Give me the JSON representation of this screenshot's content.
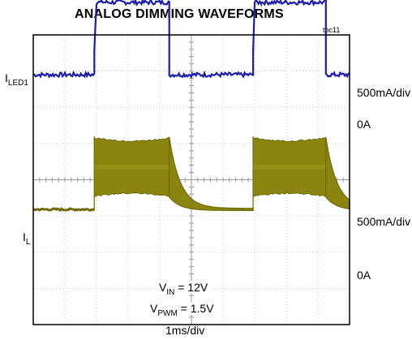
{
  "chart_data": {
    "type": "line",
    "title": "ANALOG DIMMING WAVEFORMS",
    "figure_tag": "toc11",
    "xlabel": "1ms/div",
    "x_divisions": 10,
    "y_divisions": 8,
    "grid": true,
    "traces": [
      {
        "label_main": "I",
        "label_sub": "LED1",
        "scale": "500mA/div",
        "zero_label": "0A",
        "color": "#1c1cb0",
        "zero_div": 2.9,
        "points": [
          [
            0,
            0
          ],
          [
            1.93,
            0
          ],
          [
            1.93,
            0.7
          ],
          [
            2.0,
            2.0
          ],
          [
            2.2,
            2.0
          ],
          [
            4.3,
            2.0
          ],
          [
            4.3,
            0
          ],
          [
            6.95,
            0
          ],
          [
            6.95,
            0.7
          ],
          [
            7.0,
            2.0
          ],
          [
            7.2,
            2.0
          ],
          [
            9.25,
            2.0
          ],
          [
            9.25,
            0
          ],
          [
            10,
            0
          ]
        ],
        "ripple_div": 0.06
      },
      {
        "label_main": "I",
        "label_sub": "L",
        "scale": "500mA/div",
        "zero_label": "0A",
        "color": "#6e6a08",
        "fill_color": "#8a850f",
        "zero_div": -0.7,
        "off_level": -0.82,
        "segments": [
          {
            "start": 0,
            "end": 1.93,
            "state": "off"
          },
          {
            "start": 1.93,
            "end": 4.3,
            "state": "on",
            "min": 0.25,
            "max": 1.85
          },
          {
            "start": 4.3,
            "end": 6.95,
            "state": "decay",
            "tau": 0.35
          },
          {
            "start": 6.95,
            "end": 9.25,
            "state": "on",
            "min": 0.25,
            "max": 1.85
          },
          {
            "start": 9.25,
            "end": 10,
            "state": "decay",
            "tau": 0.35
          }
        ]
      }
    ],
    "annotations": [
      {
        "main": "V",
        "sub": "IN",
        "rest": " = 12V"
      },
      {
        "main": "V",
        "sub": "PWM",
        "rest": " = 1.5V"
      }
    ]
  }
}
